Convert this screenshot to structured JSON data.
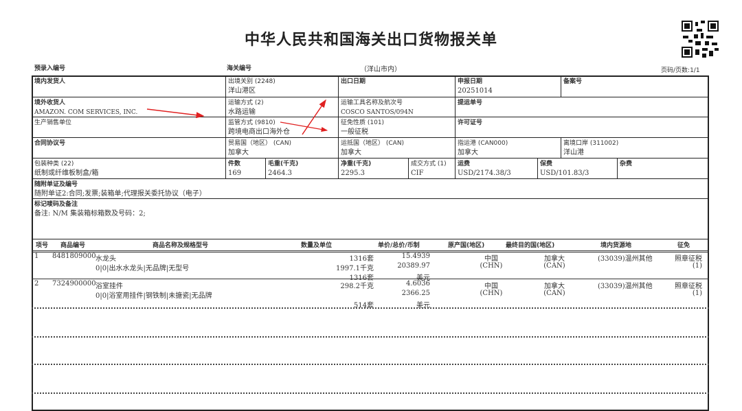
{
  "title": "中华人民共和国海关出口货物报关单",
  "meta": {
    "pre_entry_no": "预录入编号",
    "customs_no": "海关编号",
    "customs_location": "（洋山市内）",
    "page": "页码/页数:1/1"
  },
  "fields": {
    "domestic_shipper": {
      "label": "境内发货人",
      "value": ""
    },
    "exit_customs": {
      "label": "出境关别 (2248)",
      "value": "洋山港区"
    },
    "export_date": {
      "label": "出口日期",
      "value": ""
    },
    "declare_date": {
      "label": "申报日期",
      "value": "20251014"
    },
    "record_no": {
      "label": "备案号",
      "value": ""
    },
    "overseas_consignee": {
      "label": "境外收货人",
      "value": "AMAZON. COM SERVICES, INC."
    },
    "transport_mode": {
      "label": "运输方式 (2)",
      "value": "水路运输"
    },
    "vessel": {
      "label": "运输工具名称及航次号",
      "value": "COSCO SANTOS/094N"
    },
    "bill_of_lading": {
      "label": "提运单号",
      "value": ""
    },
    "producer": {
      "label": "生产销售单位",
      "value": ""
    },
    "supervision": {
      "label": "监管方式 (9810)",
      "value": "跨境电商出口海外仓"
    },
    "levy_nature": {
      "label": "征免性质 (101)",
      "value": "一般征税"
    },
    "license_no": {
      "label": "许可证号",
      "value": ""
    },
    "contract_no": {
      "label": "合同协议号",
      "value": ""
    },
    "trade_country": {
      "label": "贸易国（地区） (CAN)",
      "value": "加拿大"
    },
    "destination_country": {
      "label": "运抵国（地区） (CAN)",
      "value": "加拿大"
    },
    "destination_port": {
      "label": "指运港 (CAN000)",
      "value": "加拿大"
    },
    "exit_port": {
      "label": "离境口岸 (311002)",
      "value": "洋山港"
    },
    "package_type": {
      "label": "包装种类 (22)",
      "value": "纸制或纤维板制盒/箱"
    },
    "pieces": {
      "label": "件数",
      "value": "169"
    },
    "gross_weight": {
      "label": "毛重(千克)",
      "value": "2464.3"
    },
    "net_weight": {
      "label": "净重(千克)",
      "value": "2295.3"
    },
    "transaction_mode": {
      "label": "成交方式 (1)",
      "value": "CIF"
    },
    "freight": {
      "label": "运费",
      "value": "USD/2174.38/3"
    },
    "insurance": {
      "label": "保费",
      "value": "USD/101.83/3"
    },
    "misc": {
      "label": "杂费",
      "value": ""
    },
    "documents": {
      "label": "随附单证及编号",
      "value": "随附单证2:合同;发票;装箱单;代理报关委托协议（电子）"
    },
    "marks": {
      "label": "标记唛码及备注",
      "value": "备注:  N/M  集装箱标箱数及号码：2;"
    }
  },
  "items_header": [
    "项号",
    "商品编号",
    "商品名称及规格型号",
    "数量及单位",
    "单价/总价/币制",
    "原产国(地区)",
    "最终目的国(地区)",
    "境内货源地",
    "征免"
  ],
  "items": [
    {
      "no": "1",
      "code": "8481809000",
      "name": "水龙头",
      "spec": "0|0|出水水龙头|无品牌|无型号",
      "qty": [
        "1316套",
        "1997.1千克",
        "1316套"
      ],
      "price": [
        "15.4939",
        "20389.97",
        "美元"
      ],
      "origin": [
        "中国",
        "(CHN)"
      ],
      "dest": [
        "加拿大",
        "(CAN)"
      ],
      "source": "(33039)温州其他",
      "levy": [
        "照章征税",
        "(1)"
      ]
    },
    {
      "no": "2",
      "code": "7324900000",
      "name": "浴室挂件",
      "spec": "0|0|浴室用挂件|钢铁制|未搪瓷|无品牌",
      "qty": [
        "298.2千克",
        "",
        "514套"
      ],
      "price": [
        "4.6036",
        "2366.25",
        "美元"
      ],
      "origin": [
        "中国",
        "(CHN)"
      ],
      "dest": [
        "加拿大",
        "(CAN)"
      ],
      "source": "(33039)温州其他",
      "levy": [
        "照章征税",
        "(1)"
      ]
    }
  ],
  "colors": {
    "annotation_arrow": "#e02020"
  },
  "icons": {
    "qr": "qr-code-icon"
  }
}
